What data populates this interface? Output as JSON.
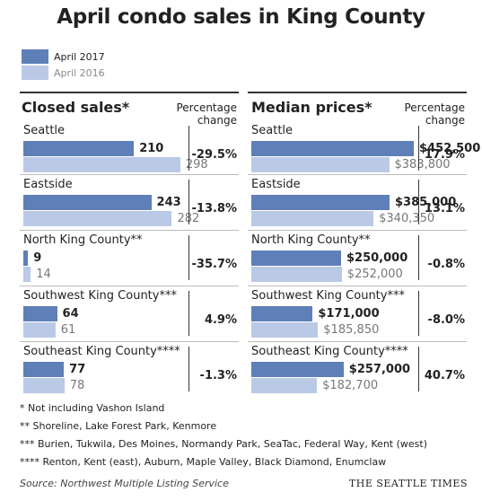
{
  "title": "April condo sales in King County",
  "legend": [
    {
      "label": "April 2017",
      "color": "#5f7fb8"
    },
    {
      "label": "April 2016",
      "color": "#bac9e6"
    }
  ],
  "headers": {
    "closed_sales": "Closed sales*",
    "median_prices": "Median prices*",
    "pct_line1": "Percentage",
    "pct_line2": "change"
  },
  "chart_data": [
    {
      "type": "bar",
      "title": "Closed sales*",
      "categories": [
        "Seattle",
        "Eastside",
        "North King County**",
        "Southwest King County***",
        "Southeast King County****"
      ],
      "series": [
        {
          "name": "April 2017",
          "values": [
            210,
            243,
            9,
            64,
            77
          ],
          "labels": [
            "210",
            "243",
            "9",
            "64",
            "77"
          ]
        },
        {
          "name": "April 2016",
          "values": [
            298,
            282,
            14,
            61,
            78
          ],
          "labels": [
            "298",
            "282",
            "14",
            "61",
            "78"
          ]
        }
      ],
      "percentage_change": [
        "-29.5%",
        "-13.8%",
        "-35.7%",
        "4.9%",
        "-1.3%"
      ]
    },
    {
      "type": "bar",
      "title": "Median prices*",
      "categories": [
        "Seattle",
        "Eastside",
        "North King County**",
        "Southwest King County***",
        "Southeast King County****"
      ],
      "series": [
        {
          "name": "April 2017",
          "values": [
            452500,
            385000,
            250000,
            171000,
            257000
          ],
          "labels": [
            "$452,500",
            "$385,000",
            "$250,000",
            "$171,000",
            "$257,000"
          ]
        },
        {
          "name": "April 2016",
          "values": [
            383800,
            340350,
            252000,
            185850,
            182700
          ],
          "labels": [
            "$383,800",
            "$340,350",
            "$252,000",
            "$185,850",
            "$182,700"
          ]
        }
      ],
      "percentage_change": [
        "17.9%",
        "13.1%",
        "-0.8%",
        "-8.0%",
        "40.7%"
      ]
    }
  ],
  "footnotes": [
    "* Not including Vashon Island",
    "** Shoreline, Lake Forest Park, Kenmore",
    "*** Burien, Tukwila, Des Moines, Normandy Park, SeaTac, Federal Way, Kent (west)",
    "**** Renton, Kent (east), Auburn, Maple Valley, Black Diamond, Enumclaw"
  ],
  "source": "Source: Northwest Multiple Listing Service",
  "brand": "THE SEATTLE TIMES"
}
